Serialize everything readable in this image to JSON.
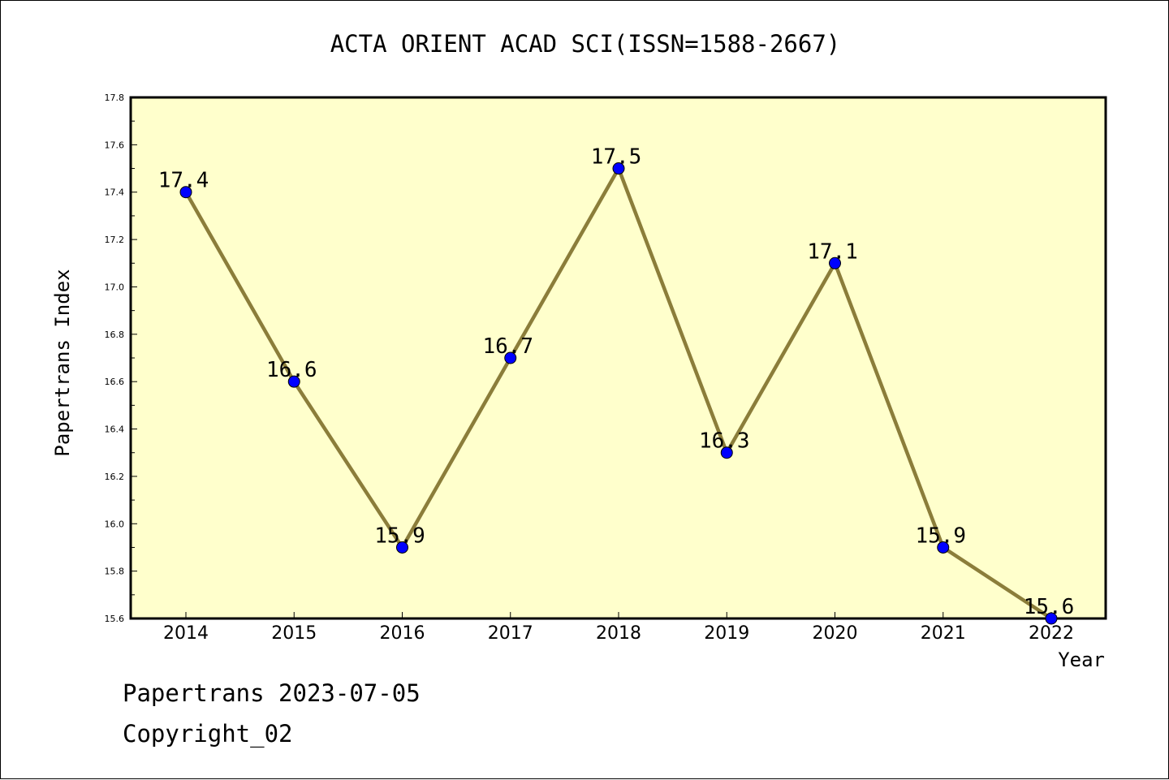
{
  "footer": {
    "date_line": "Papertrans 2023-07-05",
    "copyright_line": "Copyright_02"
  },
  "colors": {
    "plot_background": "#ffffcc",
    "line": "#8b7d3a",
    "marker": "#0000ff",
    "marker_edge": "#000000"
  },
  "chart_data": {
    "type": "line",
    "title": "ACTA ORIENT ACAD SCI(ISSN=1588-2667)",
    "xlabel": "Year",
    "ylabel": "Papertrans Index",
    "categories": [
      "2014",
      "2015",
      "2016",
      "2017",
      "2018",
      "2019",
      "2020",
      "2021",
      "2022"
    ],
    "values": [
      17.4,
      16.6,
      15.9,
      16.7,
      17.5,
      16.3,
      17.1,
      15.9,
      15.6
    ],
    "data_labels": [
      "17.4",
      "16.6",
      "15.9",
      "16.7",
      "17.5",
      "16.3",
      "17.1",
      "15.9",
      "15.6"
    ],
    "ylim": [
      15.6,
      17.8
    ],
    "y_ticks": [
      "15.6",
      "15.8",
      "16.0",
      "16.2",
      "16.4",
      "16.6",
      "16.8",
      "17.0",
      "17.2",
      "17.4",
      "17.6",
      "17.8"
    ],
    "grid": false,
    "legend": "none"
  }
}
